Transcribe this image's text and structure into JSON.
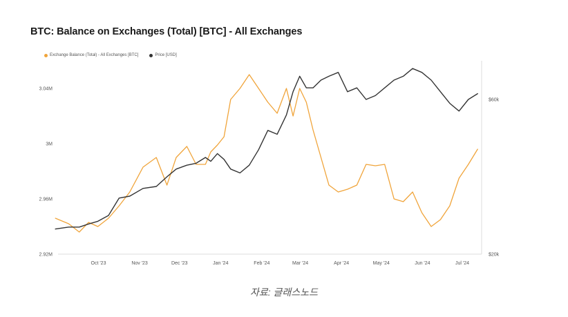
{
  "chart_data": {
    "type": "line",
    "title": "BTC: Balance on Exchanges (Total) [BTC] - All Exchanges",
    "x_ticks": [
      "Oct '23",
      "Nov '23",
      "Dec '23",
      "Jan '24",
      "Feb '24",
      "Mar '24",
      "Apr '24",
      "May '24",
      "Jun '24",
      "Jul '24"
    ],
    "y_left_ticks": [
      "3.04M",
      "3M",
      "2.96M",
      "2.92M"
    ],
    "y_right_ticks": [
      "$60k",
      "$20k"
    ],
    "ylim_left": [
      2.92,
      3.06
    ],
    "ylim_right": [
      20,
      70
    ],
    "grid": false,
    "legend_position": "top-left",
    "series": [
      {
        "name": "Exchange Balance (Total) - All Exchanges [BTC]",
        "axis": "left",
        "unit": "M BTC",
        "color": "#f0a43a",
        "x": [
          "2023-09-10",
          "2023-09-20",
          "2023-09-28",
          "2023-10-05",
          "2023-10-12",
          "2023-10-20",
          "2023-10-28",
          "2023-11-05",
          "2023-11-15",
          "2023-11-25",
          "2023-12-03",
          "2023-12-10",
          "2023-12-18",
          "2023-12-25",
          "2024-01-01",
          "2024-01-05",
          "2024-01-10",
          "2024-01-15",
          "2024-01-20",
          "2024-01-27",
          "2024-02-03",
          "2024-02-10",
          "2024-02-17",
          "2024-02-24",
          "2024-03-02",
          "2024-03-07",
          "2024-03-12",
          "2024-03-17",
          "2024-03-22",
          "2024-03-28",
          "2024-04-03",
          "2024-04-10",
          "2024-04-17",
          "2024-04-24",
          "2024-05-01",
          "2024-05-08",
          "2024-05-15",
          "2024-05-22",
          "2024-05-29",
          "2024-06-05",
          "2024-06-12",
          "2024-06-19",
          "2024-06-26",
          "2024-07-03",
          "2024-07-10",
          "2024-07-17",
          "2024-07-24"
        ],
        "values": [
          2.946,
          2.942,
          2.936,
          2.943,
          2.94,
          2.946,
          2.955,
          2.965,
          2.983,
          2.99,
          2.97,
          2.99,
          2.998,
          2.985,
          2.985,
          2.994,
          2.999,
          3.005,
          3.032,
          3.04,
          3.05,
          3.04,
          3.03,
          3.022,
          3.04,
          3.02,
          3.04,
          3.03,
          3.01,
          2.99,
          2.97,
          2.965,
          2.967,
          2.97,
          2.985,
          2.984,
          2.985,
          2.96,
          2.958,
          2.965,
          2.95,
          2.94,
          2.945,
          2.955,
          2.975,
          2.985,
          2.996
        ]
      },
      {
        "name": "Price [USD]",
        "axis": "right",
        "unit": "USD k",
        "color": "#333333",
        "x": [
          "2023-09-10",
          "2023-09-20",
          "2023-09-28",
          "2023-10-05",
          "2023-10-12",
          "2023-10-20",
          "2023-10-28",
          "2023-11-05",
          "2023-11-15",
          "2023-11-25",
          "2023-12-03",
          "2023-12-10",
          "2023-12-18",
          "2023-12-25",
          "2024-01-01",
          "2024-01-05",
          "2024-01-10",
          "2024-01-15",
          "2024-01-20",
          "2024-01-27",
          "2024-02-03",
          "2024-02-10",
          "2024-02-17",
          "2024-02-24",
          "2024-03-02",
          "2024-03-07",
          "2024-03-12",
          "2024-03-17",
          "2024-03-22",
          "2024-03-28",
          "2024-04-03",
          "2024-04-10",
          "2024-04-17",
          "2024-04-24",
          "2024-05-01",
          "2024-05-08",
          "2024-05-15",
          "2024-05-22",
          "2024-05-29",
          "2024-06-05",
          "2024-06-12",
          "2024-06-19",
          "2024-06-26",
          "2024-07-03",
          "2024-07-10",
          "2024-07-17",
          "2024-07-24"
        ],
        "values": [
          26.5,
          27.0,
          27.0,
          27.8,
          28.5,
          30.0,
          34.5,
          35.0,
          37.0,
          37.5,
          40.0,
          42.0,
          43.0,
          43.5,
          45.0,
          44.0,
          46.0,
          44.5,
          42.0,
          41.0,
          43.0,
          47.0,
          52.0,
          51.0,
          56.0,
          62.0,
          66.0,
          63.0,
          63.0,
          65.0,
          66.0,
          67.0,
          62.0,
          63.0,
          60.0,
          61.0,
          63.0,
          65.0,
          66.0,
          68.0,
          67.0,
          65.0,
          62.0,
          59.0,
          57.0,
          60.0,
          61.5
        ]
      }
    ]
  },
  "caption": "자료: 글래스노드"
}
